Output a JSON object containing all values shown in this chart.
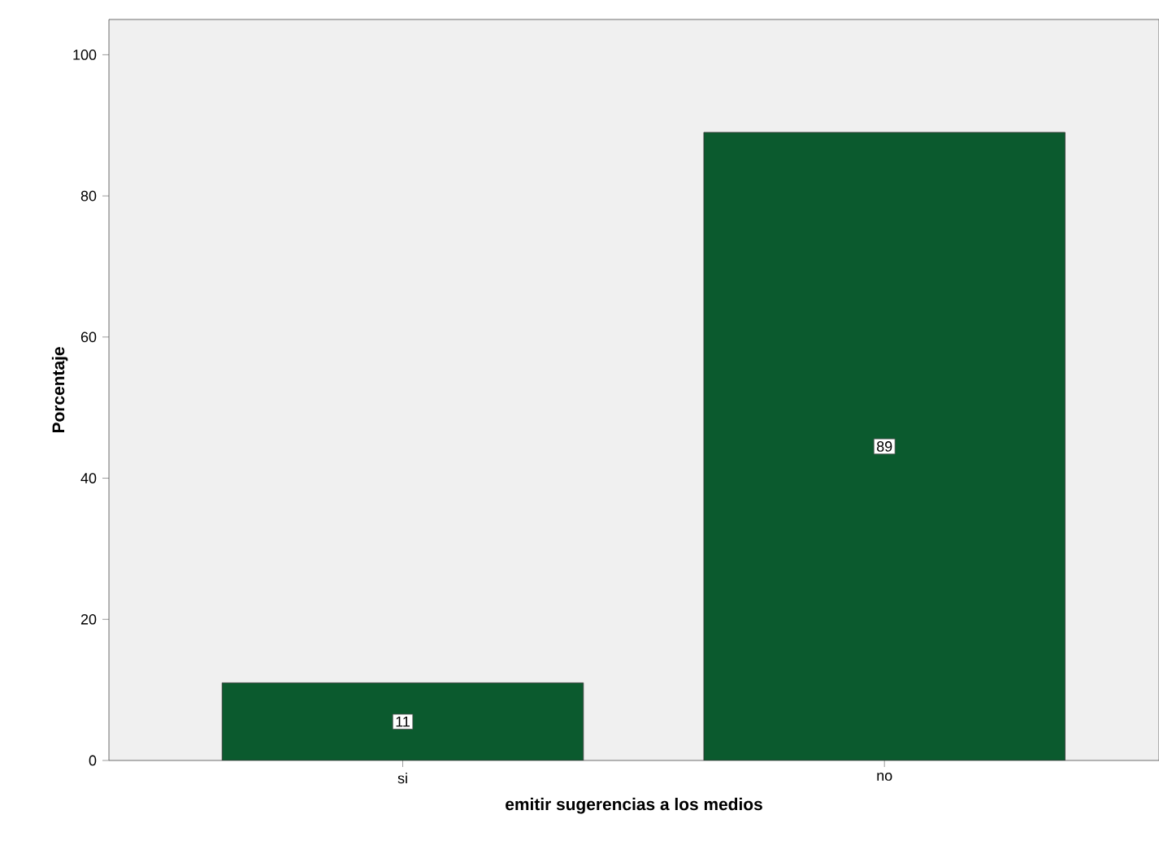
{
  "chart_data": {
    "type": "bar",
    "xlabel": "emitir sugerencias a los medios",
    "ylabel": "Porcentaje",
    "categories": [
      "si",
      "no"
    ],
    "values": [
      11,
      89
    ],
    "color": "#0b5a2e",
    "ylim": [
      0,
      105
    ],
    "yticks": [
      0,
      20,
      40,
      60,
      80,
      100
    ],
    "data_labels": true
  }
}
